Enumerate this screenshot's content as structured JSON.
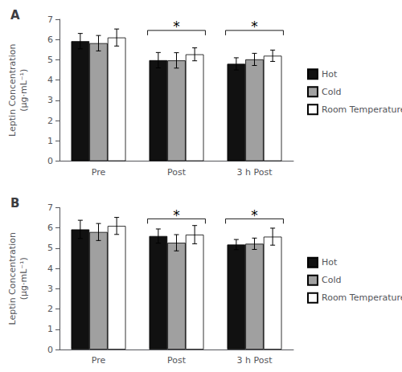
{
  "chart_data": [
    {
      "type": "bar",
      "title": "A",
      "categories": [
        "Pre",
        "Post",
        "3 h Post"
      ],
      "series": [
        {
          "name": "Hot",
          "color": "#111111",
          "values": [
            5.92,
            4.98,
            4.8
          ],
          "errors": [
            0.38,
            0.38,
            0.3
          ]
        },
        {
          "name": "Cold",
          "color": "#a0a0a0",
          "values": [
            5.82,
            4.97,
            5.02
          ],
          "errors": [
            0.38,
            0.38,
            0.3
          ]
        },
        {
          "name": "Room Temperature",
          "color": "#ffffff",
          "values": [
            6.1,
            5.27,
            5.2
          ],
          "errors": [
            0.42,
            0.32,
            0.28
          ]
        }
      ],
      "ylabel": "Leptin Concentration\n(µg·mL⁻¹)",
      "ylim": [
        0,
        7
      ],
      "yticks": [
        0,
        1,
        2,
        3,
        4,
        5,
        6,
        7
      ],
      "annotations": [
        {
          "text": "*",
          "category": "Post",
          "y": 6.45
        },
        {
          "text": "*",
          "category": "3 h Post",
          "y": 6.45
        }
      ],
      "legend": "right",
      "grid": false
    },
    {
      "type": "bar",
      "title": "B",
      "categories": [
        "Pre",
        "Post",
        "3 h Post"
      ],
      "series": [
        {
          "name": "Hot",
          "color": "#111111",
          "values": [
            5.93,
            5.6,
            5.18
          ],
          "errors": [
            0.45,
            0.35,
            0.25
          ]
        },
        {
          "name": "Cold",
          "color": "#a0a0a0",
          "values": [
            5.8,
            5.27,
            5.22
          ],
          "errors": [
            0.42,
            0.4,
            0.28
          ]
        },
        {
          "name": "Room Temperature",
          "color": "#ffffff",
          "values": [
            6.1,
            5.67,
            5.57
          ],
          "errors": [
            0.42,
            0.45,
            0.42
          ]
        }
      ],
      "ylabel": "Leptin Concentration\n(µg·mL⁻¹)",
      "ylim": [
        0,
        7
      ],
      "yticks": [
        0,
        1,
        2,
        3,
        4,
        5,
        6,
        7
      ],
      "annotations": [
        {
          "text": "*",
          "category": "Post",
          "y": 6.45
        },
        {
          "text": "*",
          "category": "3 h Post",
          "y": 6.45
        }
      ],
      "legend": "right",
      "grid": false
    }
  ]
}
